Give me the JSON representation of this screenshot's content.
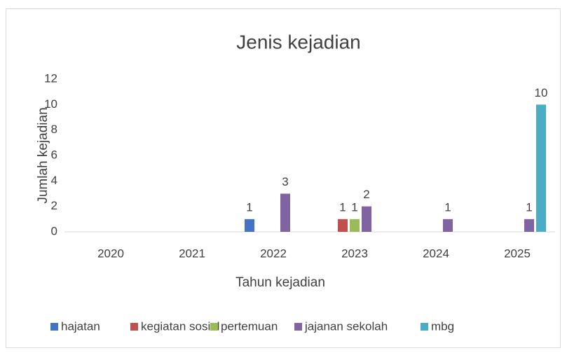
{
  "chart_data": {
    "type": "bar",
    "title": "Jenis kejadian",
    "x_label": "Tahun kejadian",
    "y_label": "Jumlah kejadian",
    "categories": [
      "2020",
      "2021",
      "2022",
      "2023",
      "2024",
      "2025"
    ],
    "series": [
      {
        "name": "hajatan",
        "color": "#4472c4",
        "values": [
          null,
          null,
          1,
          null,
          null,
          null
        ]
      },
      {
        "name": "kegiatan sosial",
        "color": "#c0504d",
        "values": [
          null,
          null,
          null,
          1,
          null,
          null
        ]
      },
      {
        "name": "pertemuan",
        "color": "#9bbb59",
        "values": [
          null,
          null,
          null,
          1,
          null,
          null
        ]
      },
      {
        "name": "jajanan sekolah",
        "color": "#8064a2",
        "values": [
          null,
          null,
          3,
          2,
          1,
          1
        ]
      },
      {
        "name": "mbg",
        "color": "#4bacc6",
        "values": [
          null,
          null,
          null,
          null,
          null,
          10
        ]
      }
    ],
    "ylim": [
      0,
      12
    ],
    "yticks": [
      0,
      2,
      4,
      6,
      8,
      10,
      12
    ],
    "grid": false,
    "legend": "bottom"
  }
}
